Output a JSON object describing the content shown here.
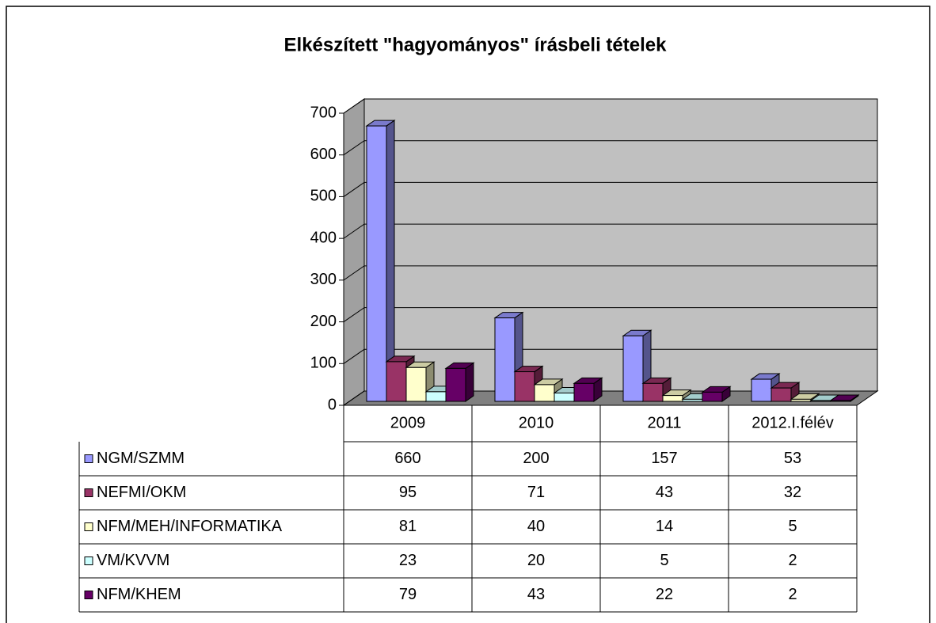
{
  "chart_data": {
    "type": "bar3d",
    "title": "Elkészített \"hagyományos\" írásbeli tételek",
    "categories": [
      "2009",
      "2010",
      "2011",
      "2012.I.félév"
    ],
    "series": [
      {
        "name": "NGM/SZMM",
        "color": "#9999FF",
        "values": [
          660,
          200,
          157,
          53
        ]
      },
      {
        "name": "NEFMI/OKM",
        "color": "#993366",
        "values": [
          95,
          71,
          43,
          32
        ]
      },
      {
        "name": "NFM/MEH/INFORMATIKA",
        "color": "#FFFFCC",
        "values": [
          81,
          40,
          14,
          5
        ]
      },
      {
        "name": "VM/KVVM",
        "color": "#CCFFFF",
        "values": [
          23,
          20,
          5,
          2
        ]
      },
      {
        "name": "NFM/KHEM",
        "color": "#660066",
        "values": [
          79,
          43,
          22,
          2
        ]
      }
    ],
    "ylim": [
      0,
      700
    ],
    "yticks": [
      0,
      100,
      200,
      300,
      400,
      500,
      600,
      700
    ],
    "grid": true,
    "legend": "table"
  }
}
